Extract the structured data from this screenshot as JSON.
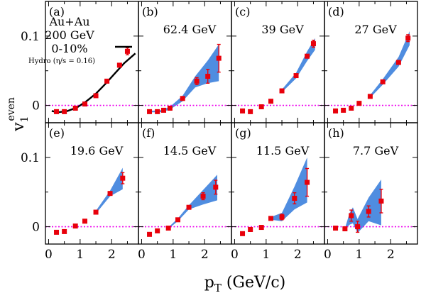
{
  "chart_data": {
    "type": "scatter",
    "xlabel": {
      "main": "p",
      "sub": "T",
      "rest": " (GeV/c)"
    },
    "ylabel": {
      "main": "v",
      "sub": "1",
      "sup": "even"
    },
    "x_ticks": [
      "0",
      "1",
      "2"
    ],
    "y_ticks": [
      "0",
      "0.1"
    ],
    "xlim": [
      -0.1,
      2.85
    ],
    "ylim": [
      -0.025,
      0.15
    ],
    "zero_line": {
      "y": 0,
      "color": "#ee00ee",
      "style": "dotted"
    },
    "colors": {
      "marker": "#e8000b",
      "band": "#4f8de0",
      "hydro": "#000000",
      "frame": "#000000"
    },
    "annotations": [
      "Au+Au",
      "200 GeV",
      "0-10%"
    ],
    "hydro_label": "Hydro (η/s = 0.16)",
    "panels": [
      {
        "label": "(a)",
        "energy": "",
        "points": [
          {
            "x": 0.25,
            "y": -0.009,
            "err": 0.002
          },
          {
            "x": 0.5,
            "y": -0.009,
            "err": 0.002
          },
          {
            "x": 0.85,
            "y": -0.004,
            "err": 0.002
          },
          {
            "x": 1.15,
            "y": 0.002,
            "err": 0.002
          },
          {
            "x": 1.5,
            "y": 0.014,
            "err": 0.002
          },
          {
            "x": 1.85,
            "y": 0.035,
            "err": 0.002
          },
          {
            "x": 2.25,
            "y": 0.058,
            "err": 0.002
          },
          {
            "x": 2.5,
            "y": 0.078,
            "err": 0.005
          }
        ],
        "band": [],
        "hydro": [
          {
            "x": 0.1,
            "y": -0.008
          },
          {
            "x": 0.3,
            "y": -0.01
          },
          {
            "x": 0.6,
            "y": -0.008
          },
          {
            "x": 0.9,
            "y": -0.003
          },
          {
            "x": 1.2,
            "y": 0.006
          },
          {
            "x": 1.5,
            "y": 0.017
          },
          {
            "x": 1.8,
            "y": 0.031
          },
          {
            "x": 2.1,
            "y": 0.046
          },
          {
            "x": 2.4,
            "y": 0.061
          },
          {
            "x": 2.75,
            "y": 0.075
          }
        ]
      },
      {
        "label": "(b)",
        "energy": "62.4 GeV",
        "points": [
          {
            "x": 0.25,
            "y": -0.009,
            "err": 0.002
          },
          {
            "x": 0.5,
            "y": -0.009,
            "err": 0.002
          },
          {
            "x": 0.7,
            "y": -0.007,
            "err": 0.002
          },
          {
            "x": 0.9,
            "y": -0.004,
            "err": 0.002
          },
          {
            "x": 1.3,
            "y": 0.01,
            "err": 0.003
          },
          {
            "x": 1.75,
            "y": 0.035,
            "err": 0.005
          },
          {
            "x": 2.1,
            "y": 0.042,
            "err": 0.01
          },
          {
            "x": 2.45,
            "y": 0.068,
            "err": 0.02
          }
        ],
        "band": [
          {
            "x": 0.25,
            "lo": -0.01,
            "hi": -0.008
          },
          {
            "x": 0.6,
            "lo": -0.01,
            "hi": -0.007
          },
          {
            "x": 0.9,
            "lo": -0.006,
            "hi": -0.002
          },
          {
            "x": 1.3,
            "lo": 0.006,
            "hi": 0.014
          },
          {
            "x": 1.7,
            "lo": 0.026,
            "hi": 0.042
          },
          {
            "x": 2.1,
            "lo": 0.032,
            "hi": 0.065
          },
          {
            "x": 2.45,
            "lo": 0.035,
            "hi": 0.088
          }
        ]
      },
      {
        "label": "(c)",
        "energy": "39 GeV",
        "points": [
          {
            "x": 0.25,
            "y": -0.008,
            "err": 0.002
          },
          {
            "x": 0.5,
            "y": -0.009,
            "err": 0.002
          },
          {
            "x": 0.85,
            "y": -0.002,
            "err": 0.002
          },
          {
            "x": 1.15,
            "y": 0.006,
            "err": 0.002
          },
          {
            "x": 1.5,
            "y": 0.021,
            "err": 0.002
          },
          {
            "x": 1.95,
            "y": 0.043,
            "err": 0.003
          },
          {
            "x": 2.3,
            "y": 0.071,
            "err": 0.003
          },
          {
            "x": 2.5,
            "y": 0.089,
            "err": 0.005
          }
        ],
        "band": [
          {
            "x": 1.5,
            "lo": 0.019,
            "hi": 0.023
          },
          {
            "x": 1.95,
            "lo": 0.039,
            "hi": 0.047
          },
          {
            "x": 2.3,
            "lo": 0.064,
            "hi": 0.078
          },
          {
            "x": 2.55,
            "lo": 0.08,
            "hi": 0.097
          }
        ]
      },
      {
        "label": "(d)",
        "energy": "27 GeV",
        "points": [
          {
            "x": 0.25,
            "y": -0.008,
            "err": 0.002
          },
          {
            "x": 0.5,
            "y": -0.007,
            "err": 0.002
          },
          {
            "x": 0.75,
            "y": -0.004,
            "err": 0.002
          },
          {
            "x": 1.0,
            "y": 0.003,
            "err": 0.002
          },
          {
            "x": 1.35,
            "y": 0.013,
            "err": 0.002
          },
          {
            "x": 1.75,
            "y": 0.034,
            "err": 0.002
          },
          {
            "x": 2.25,
            "y": 0.062,
            "err": 0.003
          },
          {
            "x": 2.55,
            "y": 0.097,
            "err": 0.005
          }
        ],
        "band": [
          {
            "x": 1.35,
            "lo": 0.011,
            "hi": 0.015
          },
          {
            "x": 1.75,
            "lo": 0.03,
            "hi": 0.038
          },
          {
            "x": 2.25,
            "lo": 0.056,
            "hi": 0.07
          },
          {
            "x": 2.6,
            "lo": 0.087,
            "hi": 0.107
          }
        ]
      },
      {
        "label": "(e)",
        "energy": "19.6 GeV",
        "points": [
          {
            "x": 0.25,
            "y": -0.008,
            "err": 0.002
          },
          {
            "x": 0.5,
            "y": -0.007,
            "err": 0.002
          },
          {
            "x": 0.85,
            "y": 0.001,
            "err": 0.002
          },
          {
            "x": 1.15,
            "y": 0.008,
            "err": 0.002
          },
          {
            "x": 1.5,
            "y": 0.021,
            "err": 0.002
          },
          {
            "x": 1.95,
            "y": 0.048,
            "err": 0.003
          },
          {
            "x": 2.35,
            "y": 0.07,
            "err": 0.008
          }
        ],
        "band": [
          {
            "x": 1.5,
            "lo": 0.019,
            "hi": 0.023
          },
          {
            "x": 1.95,
            "lo": 0.044,
            "hi": 0.052
          },
          {
            "x": 2.35,
            "lo": 0.054,
            "hi": 0.085
          }
        ]
      },
      {
        "label": "(f)",
        "energy": "14.5 GeV",
        "points": [
          {
            "x": 0.25,
            "y": -0.011,
            "err": 0.002
          },
          {
            "x": 0.5,
            "y": -0.006,
            "err": 0.002
          },
          {
            "x": 0.85,
            "y": -0.002,
            "err": 0.002
          },
          {
            "x": 1.15,
            "y": 0.01,
            "err": 0.002
          },
          {
            "x": 1.5,
            "y": 0.028,
            "err": 0.002
          },
          {
            "x": 1.95,
            "y": 0.044,
            "err": 0.005
          },
          {
            "x": 2.35,
            "y": 0.057,
            "err": 0.01
          }
        ],
        "band": [
          {
            "x": 0.85,
            "lo": -0.003,
            "hi": -0.001
          },
          {
            "x": 1.15,
            "lo": 0.008,
            "hi": 0.012
          },
          {
            "x": 1.5,
            "lo": 0.025,
            "hi": 0.031
          },
          {
            "x": 1.95,
            "lo": 0.032,
            "hi": 0.053
          },
          {
            "x": 2.4,
            "lo": 0.038,
            "hi": 0.075
          }
        ]
      },
      {
        "label": "(g)",
        "energy": "11.5 GeV",
        "points": [
          {
            "x": 0.25,
            "y": -0.01,
            "err": 0.002
          },
          {
            "x": 0.5,
            "y": -0.004,
            "err": 0.002
          },
          {
            "x": 0.85,
            "y": -0.001,
            "err": 0.002
          },
          {
            "x": 1.15,
            "y": 0.012,
            "err": 0.003
          },
          {
            "x": 1.5,
            "y": 0.014,
            "err": 0.004
          },
          {
            "x": 1.9,
            "y": 0.041,
            "err": 0.008
          },
          {
            "x": 2.3,
            "y": 0.064,
            "err": 0.02
          }
        ],
        "band": [
          {
            "x": 1.15,
            "lo": 0.01,
            "hi": 0.014
          },
          {
            "x": 1.5,
            "lo": 0.008,
            "hi": 0.02
          },
          {
            "x": 1.9,
            "lo": 0.025,
            "hi": 0.058
          },
          {
            "x": 2.3,
            "lo": 0.035,
            "hi": 0.1
          }
        ]
      },
      {
        "label": "(h)",
        "energy": "7.7 GeV",
        "points": [
          {
            "x": 0.25,
            "y": -0.002,
            "err": 0.002
          },
          {
            "x": 0.55,
            "y": -0.003,
            "err": 0.002
          },
          {
            "x": 0.75,
            "y": 0.016,
            "err": 0.008
          },
          {
            "x": 0.95,
            "y": 0.0,
            "err": 0.008
          },
          {
            "x": 1.3,
            "y": 0.022,
            "err": 0.008
          },
          {
            "x": 1.7,
            "y": 0.037,
            "err": 0.017
          }
        ],
        "band": [
          {
            "x": 0.55,
            "lo": -0.004,
            "hi": -0.002
          },
          {
            "x": 0.7,
            "lo": 0.003,
            "hi": 0.02
          },
          {
            "x": 0.8,
            "lo": 0.005,
            "hi": 0.028
          },
          {
            "x": 0.95,
            "lo": -0.009,
            "hi": 0.011
          },
          {
            "x": 1.3,
            "lo": 0.008,
            "hi": 0.042
          },
          {
            "x": 1.7,
            "lo": 0.002,
            "hi": 0.068
          }
        ]
      }
    ]
  }
}
